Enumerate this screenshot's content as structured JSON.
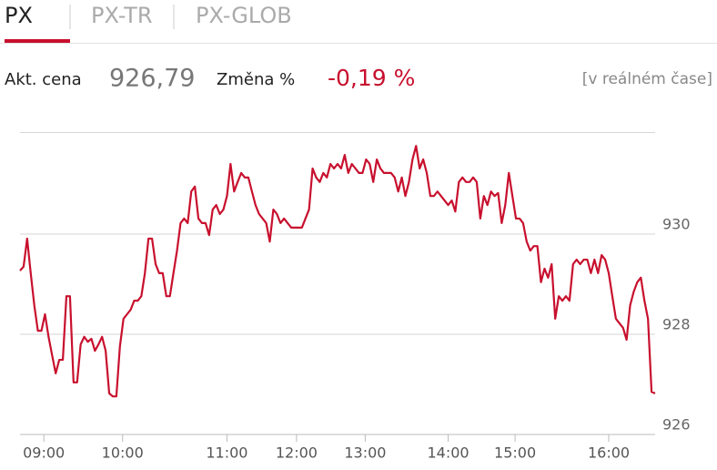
{
  "tabs": [
    "PX",
    "PX-TR",
    "PX-GLOB"
  ],
  "active_tab": 0,
  "quote": {
    "price_label": "Akt. cena",
    "price": "926,79",
    "change_label": "Změna %",
    "change": "-0,19 %",
    "realtime": "[v reálném čase]"
  },
  "chart_data": {
    "type": "line",
    "color": "#c8102e",
    "grid": true,
    "ylim": [
      926,
      932
    ],
    "yticks": [
      926,
      928,
      930
    ],
    "xlim": [
      0,
      178
    ],
    "xticks": [
      {
        "value": 6.67,
        "label": "09:00"
      },
      {
        "value": 28.75,
        "label": "10:00"
      },
      {
        "value": 58,
        "label": "11:00"
      },
      {
        "value": 77.5,
        "label": "12:00"
      },
      {
        "value": 96.75,
        "label": "13:00"
      },
      {
        "value": 120,
        "label": "14:00"
      },
      {
        "value": 138.75,
        "label": "15:00"
      },
      {
        "value": 165,
        "label": "16:00"
      }
    ],
    "values": [
      929.27,
      929.35,
      929.91,
      929.22,
      928.58,
      928.07,
      928.07,
      928.4,
      927.95,
      927.58,
      927.22,
      927.49,
      927.49,
      928.76,
      928.76,
      927.04,
      927.04,
      927.8,
      927.95,
      927.85,
      927.91,
      927.67,
      927.8,
      927.95,
      927.67,
      926.82,
      926.76,
      926.76,
      927.76,
      928.31,
      928.4,
      928.49,
      928.67,
      928.67,
      928.76,
      929.22,
      929.91,
      929.91,
      929.4,
      929.22,
      929.22,
      928.76,
      928.76,
      929.22,
      929.67,
      930.22,
      930.31,
      930.22,
      930.85,
      930.95,
      930.31,
      930.22,
      930.22,
      929.98,
      930.49,
      930.58,
      930.4,
      930.49,
      930.76,
      931.4,
      930.85,
      931.04,
      931.22,
      931.13,
      931.13,
      930.85,
      930.58,
      930.4,
      930.31,
      930.22,
      929.85,
      930.49,
      930.4,
      930.22,
      930.31,
      930.22,
      930.13,
      930.13,
      930.13,
      930.13,
      930.31,
      930.49,
      931.31,
      931.13,
      931.04,
      931.22,
      931.13,
      931.4,
      931.31,
      931.4,
      931.31,
      931.58,
      931.22,
      931.4,
      931.31,
      931.22,
      931.22,
      931.49,
      931.4,
      931.04,
      931.49,
      931.31,
      931.22,
      931.22,
      931.22,
      931.13,
      930.85,
      931.13,
      930.76,
      931.04,
      931.49,
      931.76,
      931.31,
      931.49,
      931.22,
      930.76,
      930.76,
      930.85,
      930.76,
      930.67,
      930.58,
      930.67,
      930.45,
      931.04,
      931.13,
      931.04,
      931.04,
      931.13,
      931.04,
      930.31,
      930.76,
      930.58,
      930.85,
      930.76,
      930.82,
      930.22,
      930.58,
      931.22,
      930.76,
      930.31,
      930.31,
      930.22,
      929.85,
      929.67,
      929.76,
      929.76,
      929.04,
      929.31,
      929.13,
      929.4,
      928.31,
      928.76,
      928.67,
      928.76,
      928.67,
      929.4,
      929.49,
      929.4,
      929.49,
      929.49,
      929.22,
      929.49,
      929.22,
      929.58,
      929.49,
      929.22,
      928.76,
      928.31,
      928.22,
      928.13,
      927.89,
      928.58,
      928.85,
      929.04,
      929.13,
      928.67,
      928.31,
      926.85,
      926.82
    ]
  }
}
